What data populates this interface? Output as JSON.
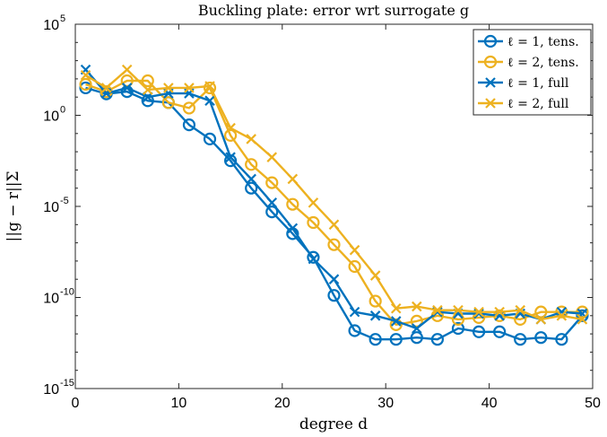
{
  "chart_data": {
    "type": "line",
    "title": "Buckling plate: error wrt surrogate g",
    "xlabel": "degree d",
    "ylabel": "||g − r||Σ",
    "xlim": [
      0,
      50
    ],
    "ylim_exponents": [
      -15,
      5
    ],
    "yscale": "log",
    "grid": false,
    "legend_position": "top-right",
    "x_ticks": [
      0,
      10,
      20,
      30,
      40,
      50
    ],
    "y_tick_exponents": [
      -15,
      -10,
      -5,
      0,
      5
    ],
    "series": [
      {
        "name": "ℓ = 1, tens.",
        "color": "#0072BD",
        "marker": "circle",
        "x": [
          1,
          3,
          5,
          7,
          9,
          11,
          13,
          15,
          17,
          19,
          21,
          23,
          25,
          27,
          29,
          31,
          33,
          35,
          37,
          39,
          41,
          43,
          45,
          47,
          49
        ],
        "y": [
          32.0,
          15.0,
          20.0,
          6.3,
          5.0,
          0.3,
          0.05,
          0.0032,
          0.0001,
          5e-06,
          3.2e-07,
          1.6e-08,
          1.3e-10,
          1.5e-12,
          5e-13,
          5e-13,
          6.3e-13,
          5e-13,
          2e-12,
          1.3e-12,
          1.3e-12,
          5e-13,
          6.3e-13,
          5e-13,
          1e-11
        ]
      },
      {
        "name": "ℓ = 2, tens.",
        "color": "#EDB120",
        "marker": "circle",
        "x": [
          1,
          3,
          5,
          7,
          9,
          11,
          13,
          15,
          17,
          19,
          21,
          23,
          25,
          27,
          29,
          31,
          33,
          35,
          37,
          39,
          41,
          43,
          45,
          47,
          49
        ],
        "y": [
          50.0,
          20.0,
          79.0,
          79.0,
          5.0,
          2.5,
          32.0,
          0.079,
          0.002,
          0.0002,
          1.3e-05,
          1.3e-06,
          7.9e-08,
          5e-09,
          6.3e-11,
          3.2e-12,
          5e-12,
          1e-11,
          6.3e-12,
          7.9e-12,
          1e-11,
          6.3e-12,
          1.6e-11,
          1.6e-11,
          1.6e-11
        ]
      },
      {
        "name": "ℓ = 1, full",
        "color": "#0072BD",
        "marker": "x",
        "x": [
          1,
          3,
          5,
          7,
          9,
          11,
          13,
          15,
          17,
          19,
          21,
          23,
          25,
          27,
          29,
          31,
          33,
          35,
          37,
          39,
          41,
          43,
          45,
          47,
          49
        ],
        "y": [
          320.0,
          16.0,
          32.0,
          10.0,
          16.0,
          16.0,
          6.3,
          0.005,
          0.00032,
          1.6e-05,
          6.3e-07,
          1.3e-08,
          1e-09,
          1.6e-11,
          1e-11,
          5e-12,
          2e-12,
          1.6e-11,
          1.3e-11,
          1.3e-11,
          1e-11,
          1.3e-11,
          6.3e-12,
          1.6e-11,
          1.3e-11
        ]
      },
      {
        "name": "ℓ = 2, full",
        "color": "#EDB120",
        "marker": "x",
        "x": [
          1,
          3,
          5,
          7,
          9,
          11,
          13,
          15,
          17,
          19,
          21,
          23,
          25,
          27,
          29,
          31,
          33,
          35,
          37,
          39,
          41,
          43,
          45,
          47,
          49
        ],
        "y": [
          160.0,
          32.0,
          320.0,
          25.0,
          32.0,
          32.0,
          40.0,
          0.2,
          0.05,
          0.005,
          0.00032,
          1.6e-05,
          1e-06,
          4e-08,
          1.6e-09,
          2.5e-11,
          3.2e-11,
          2e-11,
          2e-11,
          1.6e-11,
          1.6e-11,
          2e-11,
          6.3e-12,
          1e-11,
          6.3e-12
        ]
      }
    ]
  }
}
